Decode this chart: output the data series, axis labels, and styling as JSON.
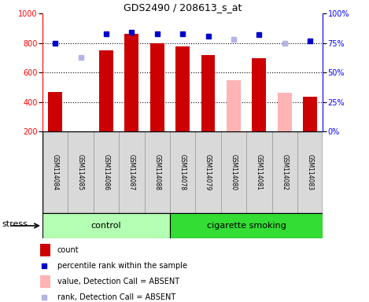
{
  "title": "GDS2490 / 208613_s_at",
  "samples": [
    "GSM114084",
    "GSM114085",
    "GSM114086",
    "GSM114087",
    "GSM114088",
    "GSM114078",
    "GSM114079",
    "GSM114080",
    "GSM114081",
    "GSM114082",
    "GSM114083"
  ],
  "bar_values": [
    465,
    null,
    750,
    865,
    800,
    775,
    720,
    null,
    695,
    null,
    435
  ],
  "bar_colors": [
    "#cc0000",
    "#cc0000",
    "#cc0000",
    "#cc0000",
    "#cc0000",
    "#cc0000",
    "#cc0000",
    "#ffb3b3",
    "#cc0000",
    "#ffb3b3",
    "#cc0000"
  ],
  "rank_dots": [
    75,
    null,
    83,
    84,
    83,
    83,
    81,
    null,
    82,
    null,
    77
  ],
  "absent_bar_values": [
    null,
    null,
    null,
    null,
    null,
    null,
    null,
    550,
    null,
    460,
    null
  ],
  "absent_rank_dots": [
    null,
    63,
    null,
    null,
    null,
    null,
    null,
    78,
    null,
    75,
    null
  ],
  "ylim_left": [
    200,
    1000
  ],
  "ylim_right": [
    0,
    100
  ],
  "yticks_left": [
    200,
    400,
    600,
    800,
    1000
  ],
  "yticks_right": [
    0,
    25,
    50,
    75,
    100
  ],
  "grid_lines": [
    400,
    600,
    800
  ],
  "bar_width": 0.55,
  "bar_bg_color": "#d9d9d9",
  "control_color": "#b3ffb3",
  "smoking_color": "#33dd33",
  "n_control": 5,
  "n_smoking": 6,
  "legend_items": [
    {
      "label": "count",
      "color": "#cc0000",
      "type": "bar"
    },
    {
      "label": "percentile rank within the sample",
      "color": "#0000cc",
      "type": "dot"
    },
    {
      "label": "value, Detection Call = ABSENT",
      "color": "#ffb3b3",
      "type": "bar"
    },
    {
      "label": "rank, Detection Call = ABSENT",
      "color": "#b3b3e6",
      "type": "dot"
    }
  ]
}
